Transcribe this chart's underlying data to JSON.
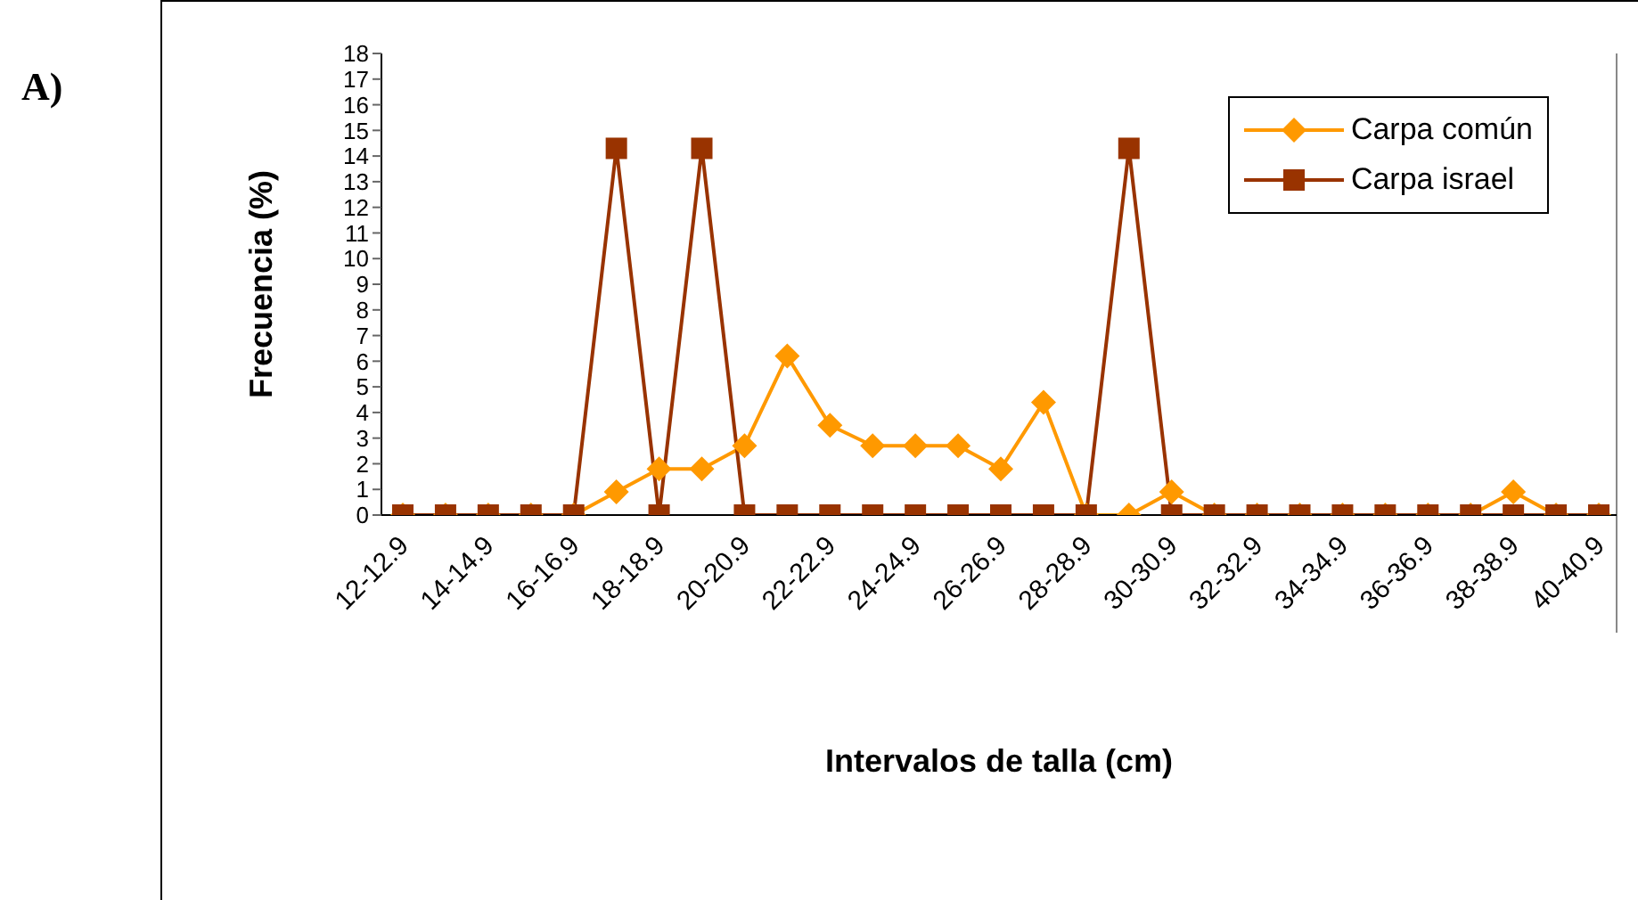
{
  "chart_data": {
    "type": "line",
    "xlabel": "Intervalos de talla (cm)",
    "ylabel": "Frecuencia (%)",
    "annotations": [
      "A)"
    ],
    "categories": [
      "12-12.9",
      null,
      "14-14.9",
      null,
      "16-16.9",
      null,
      "18-18.9",
      null,
      "20-20.9",
      null,
      "22-22.9",
      null,
      "24-24.9",
      null,
      "26-26.9",
      null,
      "28-28.9",
      null,
      "30-30.9",
      null,
      "32-32.9",
      null,
      "34-34.9",
      null,
      "36-36.9",
      null,
      "38-38.9",
      null,
      "40-40.9"
    ],
    "series": [
      {
        "name": "Carpa común",
        "color": "#ff9900",
        "marker": "diamond",
        "values": [
          0,
          0,
          0,
          0,
          0,
          0.9,
          1.8,
          1.8,
          2.7,
          6.2,
          3.5,
          2.7,
          2.7,
          2.7,
          1.8,
          4.4,
          0,
          0,
          0.9,
          0,
          0,
          0,
          0,
          0,
          0,
          0,
          0.9,
          0,
          0
        ]
      },
      {
        "name": "Carpa israel",
        "color": "#993300",
        "marker": "square",
        "values": [
          0,
          0,
          0,
          0,
          0,
          14.3,
          0,
          14.3,
          0,
          0,
          0,
          0,
          0,
          0,
          0,
          0,
          0,
          14.3,
          0,
          0,
          0,
          0,
          0,
          0,
          0,
          0,
          0,
          0,
          0
        ]
      }
    ],
    "ylim": [
      0,
      18
    ],
    "yticks": [
      0,
      1,
      2,
      3,
      4,
      5,
      6,
      7,
      8,
      9,
      10,
      11,
      12,
      13,
      14,
      15,
      16,
      17,
      18
    ],
    "grid": false,
    "legend": "top right"
  }
}
